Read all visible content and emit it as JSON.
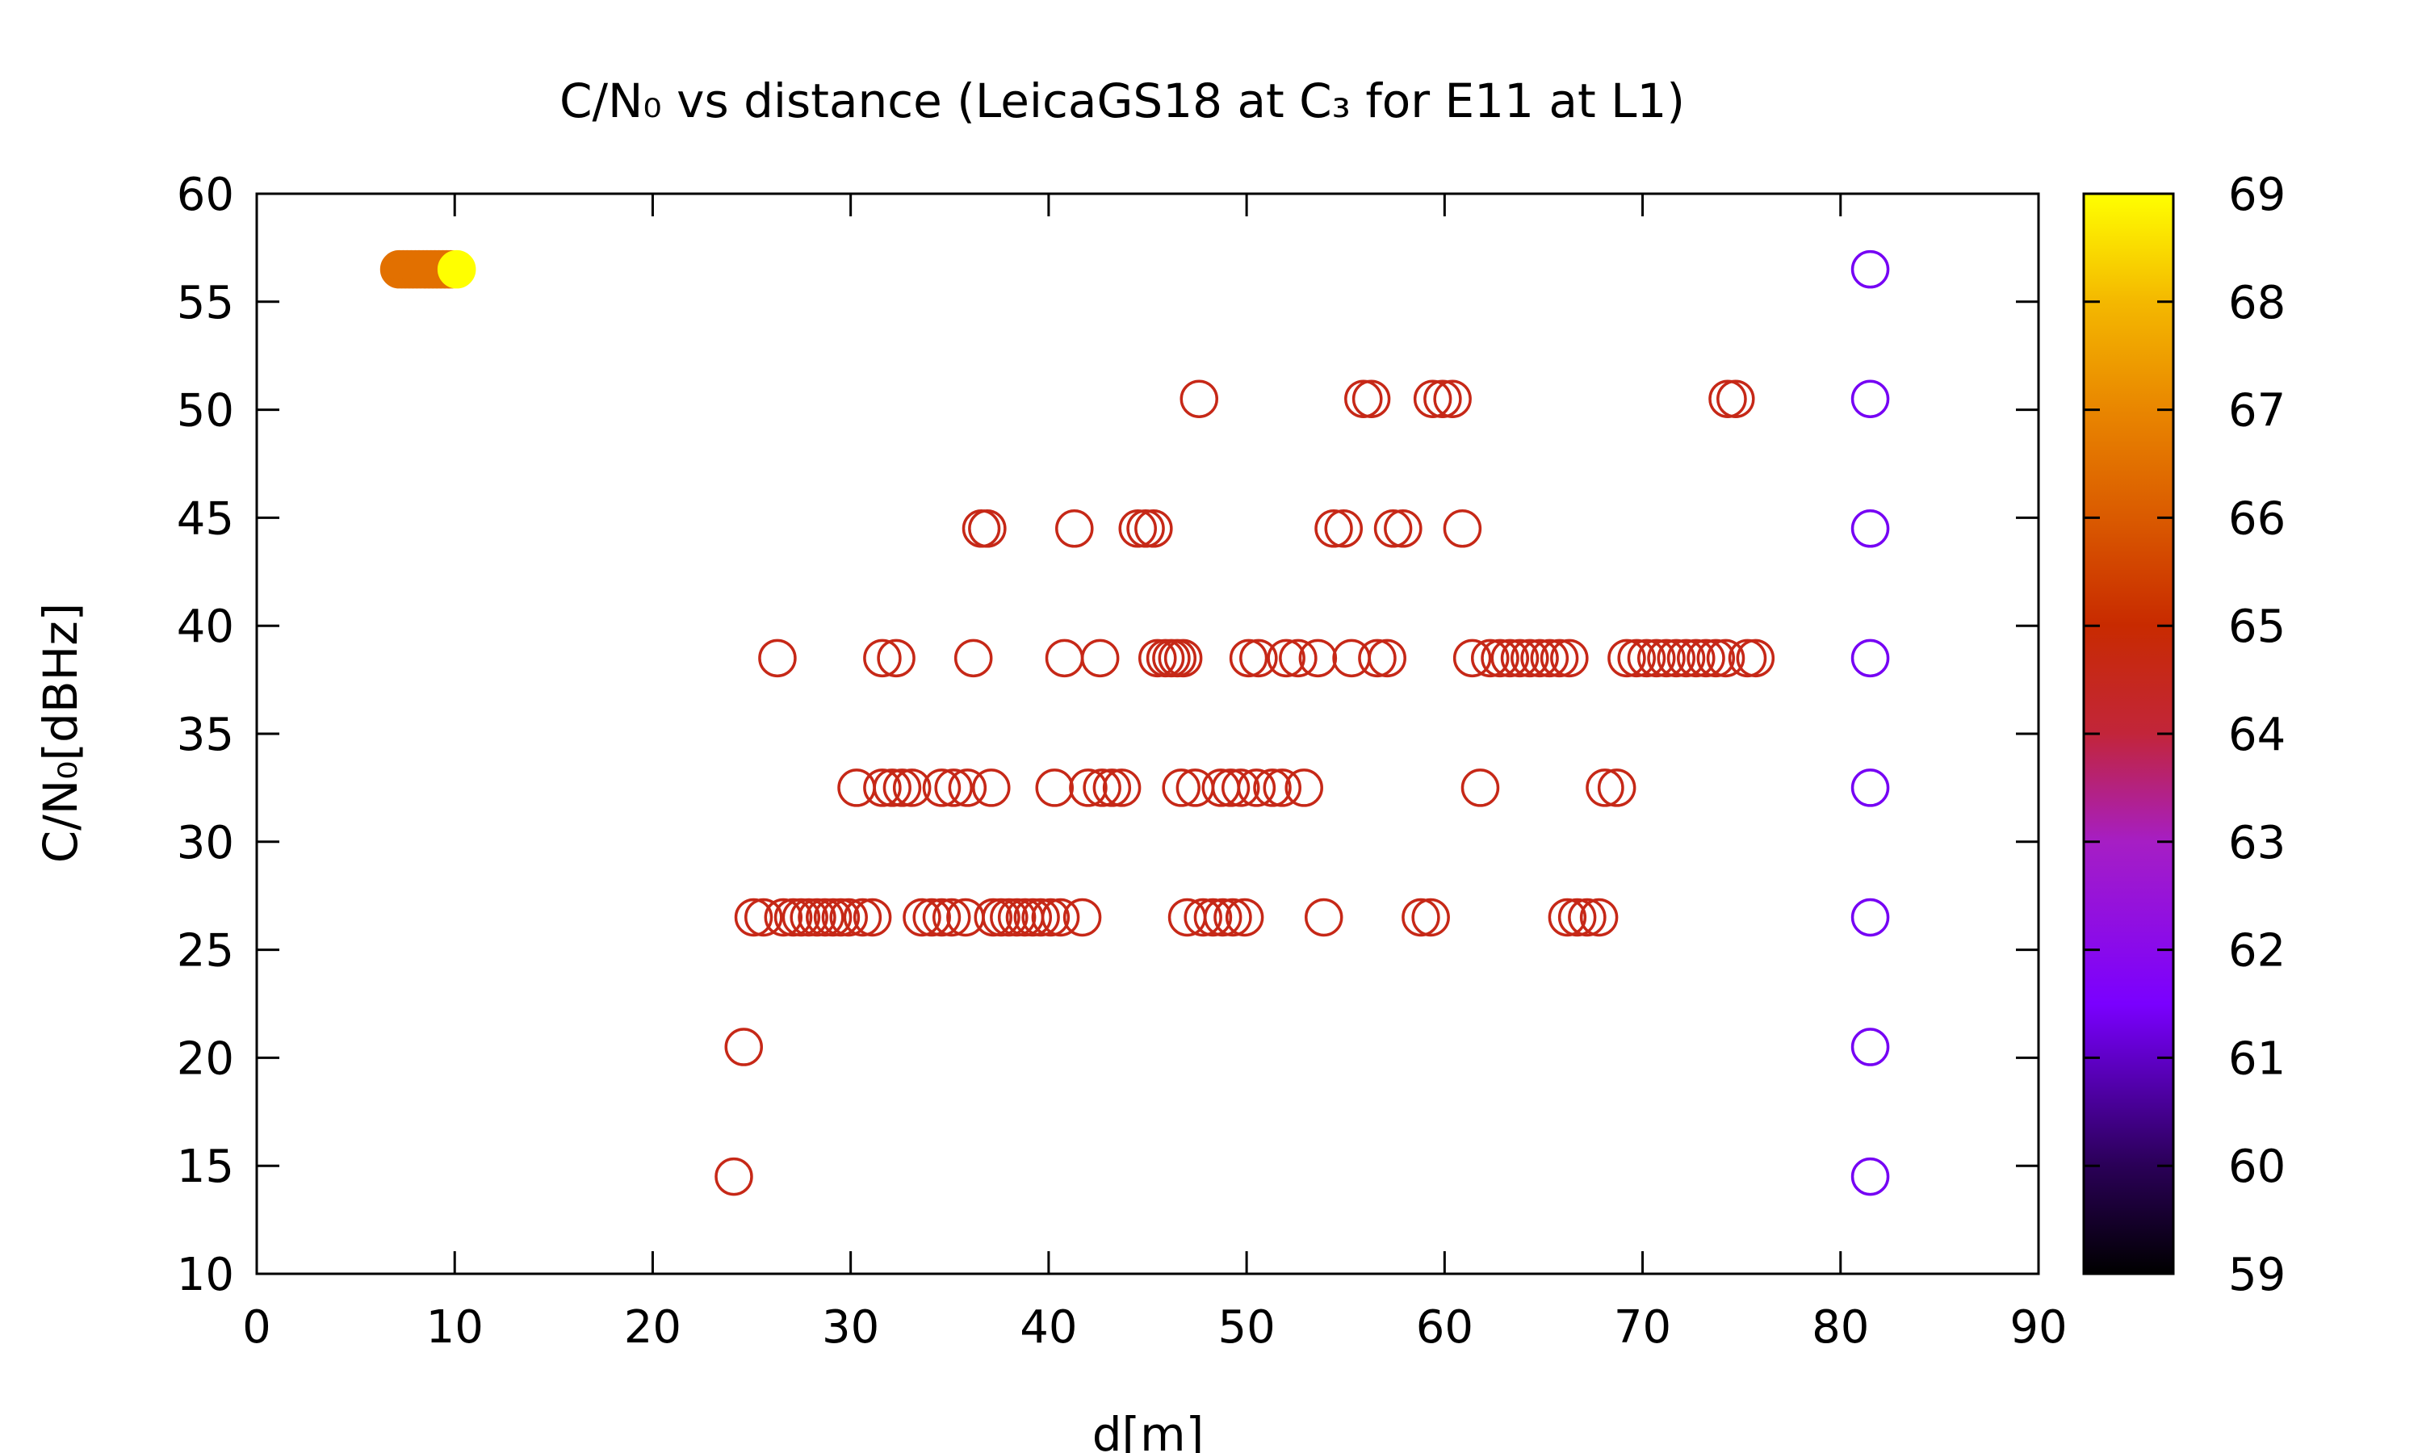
{
  "chart_data": {
    "type": "scatter",
    "title": "C/N₀ vs distance (LeicaGS18 at C₃ for E11 at L1)",
    "xlabel": "d[m]",
    "ylabel": "C/N₀[dBHz]",
    "xlim": [
      0,
      90
    ],
    "ylim": [
      10,
      60
    ],
    "x_ticks": [
      "0",
      "10",
      "20",
      "30",
      "40",
      "50",
      "60",
      "70",
      "80",
      "90"
    ],
    "y_ticks": [
      "10",
      "15",
      "20",
      "25",
      "30",
      "35",
      "40",
      "45",
      "50",
      "55",
      "60"
    ],
    "colorbar": {
      "range": [
        59,
        69
      ],
      "ticks": [
        "59",
        "60",
        "61",
        "62",
        "63",
        "64",
        "65",
        "66",
        "67",
        "68",
        "69"
      ],
      "palette": "gnuplot (black-purple-red-orange-yellow)"
    },
    "grid": false,
    "legend": "none",
    "marker": "open-circle",
    "series": [
      {
        "color_value": 66.5,
        "filled": true,
        "points": [
          [
            7.2,
            56.5
          ],
          [
            7.4,
            56.5
          ],
          [
            7.6,
            56.5
          ],
          [
            7.8,
            56.5
          ],
          [
            8.0,
            56.5
          ],
          [
            8.2,
            56.5
          ],
          [
            8.4,
            56.5
          ],
          [
            8.6,
            56.5
          ],
          [
            8.8,
            56.5
          ],
          [
            9.0,
            56.5
          ],
          [
            9.2,
            56.5
          ],
          [
            9.4,
            56.5
          ],
          [
            9.6,
            56.5
          ],
          [
            9.8,
            56.5
          ]
        ]
      },
      {
        "color_value": 69,
        "filled": true,
        "points": [
          [
            10.1,
            56.5
          ]
        ]
      },
      {
        "color_value": 64.6,
        "filled": false,
        "points": [
          [
            24.1,
            14.5
          ],
          [
            24.6,
            20.5
          ],
          [
            25.1,
            26.5
          ],
          [
            25.6,
            26.5
          ],
          [
            26.6,
            26.5
          ],
          [
            27.1,
            26.5
          ],
          [
            27.5,
            26.5
          ],
          [
            27.9,
            26.5
          ],
          [
            28.3,
            26.5
          ],
          [
            28.7,
            26.5
          ],
          [
            29.1,
            26.5
          ],
          [
            29.5,
            26.5
          ],
          [
            29.9,
            26.5
          ],
          [
            30.6,
            26.5
          ],
          [
            31.1,
            26.5
          ],
          [
            33.6,
            26.5
          ],
          [
            34.1,
            26.5
          ],
          [
            34.6,
            26.5
          ],
          [
            35.1,
            26.5
          ],
          [
            35.8,
            26.5
          ],
          [
            37.2,
            26.5
          ],
          [
            37.6,
            26.5
          ],
          [
            38.0,
            26.5
          ],
          [
            38.4,
            26.5
          ],
          [
            38.8,
            26.5
          ],
          [
            39.2,
            26.5
          ],
          [
            39.6,
            26.5
          ],
          [
            40.1,
            26.5
          ],
          [
            40.6,
            26.5
          ],
          [
            41.7,
            26.5
          ],
          [
            47.0,
            26.5
          ],
          [
            47.8,
            26.5
          ],
          [
            48.3,
            26.5
          ],
          [
            48.8,
            26.5
          ],
          [
            49.3,
            26.5
          ],
          [
            49.9,
            26.5
          ],
          [
            53.9,
            26.5
          ],
          [
            58.8,
            26.5
          ],
          [
            59.3,
            26.5
          ],
          [
            66.2,
            26.5
          ],
          [
            66.7,
            26.5
          ],
          [
            67.2,
            26.5
          ],
          [
            67.8,
            26.5
          ],
          [
            30.3,
            32.5
          ],
          [
            31.6,
            32.5
          ],
          [
            32.1,
            32.5
          ],
          [
            32.6,
            32.5
          ],
          [
            33.1,
            32.5
          ],
          [
            34.6,
            32.5
          ],
          [
            35.2,
            32.5
          ],
          [
            35.9,
            32.5
          ],
          [
            37.1,
            32.5
          ],
          [
            40.3,
            32.5
          ],
          [
            42.0,
            32.5
          ],
          [
            42.7,
            32.5
          ],
          [
            43.2,
            32.5
          ],
          [
            43.7,
            32.5
          ],
          [
            46.7,
            32.5
          ],
          [
            47.4,
            32.5
          ],
          [
            48.7,
            32.5
          ],
          [
            49.2,
            32.5
          ],
          [
            49.7,
            32.5
          ],
          [
            50.5,
            32.5
          ],
          [
            51.3,
            32.5
          ],
          [
            51.8,
            32.5
          ],
          [
            52.9,
            32.5
          ],
          [
            61.8,
            32.5
          ],
          [
            68.1,
            32.5
          ],
          [
            68.7,
            32.5
          ],
          [
            26.3,
            38.5
          ],
          [
            31.6,
            38.5
          ],
          [
            32.3,
            38.5
          ],
          [
            36.2,
            38.5
          ],
          [
            40.8,
            38.5
          ],
          [
            42.6,
            38.5
          ],
          [
            45.5,
            38.5
          ],
          [
            45.9,
            38.5
          ],
          [
            46.2,
            38.5
          ],
          [
            46.5,
            38.5
          ],
          [
            46.8,
            38.5
          ],
          [
            50.1,
            38.5
          ],
          [
            50.6,
            38.5
          ],
          [
            52.0,
            38.5
          ],
          [
            52.6,
            38.5
          ],
          [
            53.6,
            38.5
          ],
          [
            55.3,
            38.5
          ],
          [
            56.6,
            38.5
          ],
          [
            57.1,
            38.5
          ],
          [
            61.4,
            38.5
          ],
          [
            62.3,
            38.5
          ],
          [
            62.8,
            38.5
          ],
          [
            63.3,
            38.5
          ],
          [
            63.8,
            38.5
          ],
          [
            64.3,
            38.5
          ],
          [
            64.8,
            38.5
          ],
          [
            65.3,
            38.5
          ],
          [
            65.8,
            38.5
          ],
          [
            66.3,
            38.5
          ],
          [
            69.2,
            38.5
          ],
          [
            69.7,
            38.5
          ],
          [
            70.2,
            38.5
          ],
          [
            70.7,
            38.5
          ],
          [
            71.2,
            38.5
          ],
          [
            71.7,
            38.5
          ],
          [
            72.2,
            38.5
          ],
          [
            72.7,
            38.5
          ],
          [
            73.2,
            38.5
          ],
          [
            73.7,
            38.5
          ],
          [
            74.2,
            38.5
          ],
          [
            75.3,
            38.5
          ],
          [
            75.7,
            38.5
          ],
          [
            36.6,
            44.5
          ],
          [
            36.9,
            44.5
          ],
          [
            41.3,
            44.5
          ],
          [
            44.5,
            44.5
          ],
          [
            44.9,
            44.5
          ],
          [
            45.3,
            44.5
          ],
          [
            54.4,
            44.5
          ],
          [
            54.9,
            44.5
          ],
          [
            57.4,
            44.5
          ],
          [
            57.9,
            44.5
          ],
          [
            60.9,
            44.5
          ],
          [
            47.6,
            50.5
          ],
          [
            55.9,
            50.5
          ],
          [
            56.3,
            50.5
          ],
          [
            59.4,
            50.5
          ],
          [
            59.9,
            50.5
          ],
          [
            60.4,
            50.5
          ],
          [
            74.3,
            50.5
          ],
          [
            74.7,
            50.5
          ]
        ]
      },
      {
        "color_value": 61.4,
        "filled": false,
        "points": [
          [
            81.5,
            14.5
          ],
          [
            81.5,
            20.5
          ],
          [
            81.5,
            26.5
          ],
          [
            81.5,
            32.5
          ],
          [
            81.5,
            38.5
          ],
          [
            81.5,
            44.5
          ],
          [
            81.5,
            50.5
          ],
          [
            81.5,
            56.5
          ]
        ]
      }
    ]
  }
}
